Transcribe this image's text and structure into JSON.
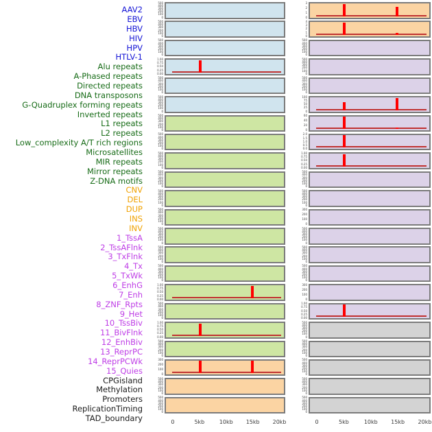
{
  "chart_data": {
    "type": "line",
    "title": "",
    "xlabel": "",
    "ylabel": "",
    "x_ticks": [
      "0",
      "5kb",
      "10kb",
      "15kb",
      "20kb"
    ],
    "x_tick_kb": [
      0,
      5,
      10,
      15,
      20
    ],
    "x_range_kb": [
      0,
      20
    ],
    "columns": 2,
    "rows_per_column": 22,
    "legend_position": "none",
    "grid": false,
    "colors": {
      "spike": "#ff0000",
      "baseline": "#c03030",
      "panel_border": "#7b7b7b",
      "tick_text": "#3f3f3f",
      "axis_text": "#3a3a3a"
    },
    "groups": {
      "virus": {
        "label_color": "#1414d6",
        "panel_color": "#d0e4ee"
      },
      "repeat": {
        "label_color": "#166b16",
        "panel_color": "#cee6a3"
      },
      "sv": {
        "label_color": "#f0a202",
        "panel_color": "#fbd4a3"
      },
      "chromatin": {
        "label_color": "#be3ce6",
        "panel_color": "#dcd2e8"
      },
      "feature": {
        "label_color": "#1a1a1a",
        "panel_color": "#d3d3d3"
      }
    },
    "tracks": [
      {
        "label": "AAV2",
        "group": "virus",
        "ylim": [
          0,
          500
        ],
        "yticks": [
          "500",
          "400",
          "300",
          "200",
          "100",
          "0"
        ],
        "spikes": []
      },
      {
        "label": "EBV",
        "group": "virus",
        "ylim": [
          0,
          500
        ],
        "yticks": [
          "500",
          "400",
          "300",
          "200",
          "100",
          "0"
        ],
        "spikes": []
      },
      {
        "label": "HBV",
        "group": "virus",
        "ylim": [
          0,
          500
        ],
        "yticks": [
          "500",
          "400",
          "300",
          "200",
          "100",
          "0"
        ],
        "spikes": []
      },
      {
        "label": "HIV",
        "group": "virus",
        "ylim": [
          0,
          1
        ],
        "yticks": [
          "1.00",
          "0.75",
          "0.50",
          "0.25",
          "0.00"
        ],
        "spikes": [
          {
            "x_kb": 5,
            "y": 1.0
          }
        ]
      },
      {
        "label": "HPV",
        "group": "virus",
        "ylim": [
          0,
          500
        ],
        "yticks": [
          "500",
          "400",
          "300",
          "200",
          "100",
          "0"
        ],
        "spikes": []
      },
      {
        "label": "HTLV-1",
        "group": "virus",
        "ylim": [
          0,
          500
        ],
        "yticks": [
          "500",
          "400",
          "300",
          "200",
          "100",
          "0"
        ],
        "spikes": []
      },
      {
        "label": "Alu repeats",
        "group": "repeat",
        "ylim": [
          0,
          500
        ],
        "yticks": [
          "500",
          "400",
          "300",
          "200",
          "100",
          "0"
        ],
        "spikes": []
      },
      {
        "label": "A-Phased repeats",
        "group": "repeat",
        "ylim": [
          0,
          500
        ],
        "yticks": [
          "500",
          "400",
          "300",
          "200",
          "100",
          "0"
        ],
        "spikes": []
      },
      {
        "label": "Directed repeats",
        "group": "repeat",
        "ylim": [
          0,
          500
        ],
        "yticks": [
          "500",
          "400",
          "300",
          "200",
          "100",
          "0"
        ],
        "spikes": []
      },
      {
        "label": "DNA transposons",
        "group": "repeat",
        "ylim": [
          0,
          500
        ],
        "yticks": [
          "500",
          "400",
          "300",
          "200",
          "100",
          "0"
        ],
        "spikes": []
      },
      {
        "label": "G-Quadruplex forming repeats",
        "group": "repeat",
        "ylim": [
          0,
          500
        ],
        "yticks": [
          "500",
          "400",
          "300",
          "200",
          "100",
          "0"
        ],
        "spikes": []
      },
      {
        "label": "Inverted repeats",
        "group": "repeat",
        "ylim": [
          0,
          500
        ],
        "yticks": [
          "500",
          "400",
          "300",
          "200",
          "100",
          "0"
        ],
        "spikes": []
      },
      {
        "label": "L1 repeats",
        "group": "repeat",
        "ylim": [
          0,
          500
        ],
        "yticks": [
          "500",
          "400",
          "300",
          "200",
          "100",
          "0"
        ],
        "spikes": []
      },
      {
        "label": "L2 repeats",
        "group": "repeat",
        "ylim": [
          0,
          500
        ],
        "yticks": [
          "500",
          "400",
          "300",
          "200",
          "100",
          "0"
        ],
        "spikes": []
      },
      {
        "label": "Low_complexity A/T rich regions",
        "group": "repeat",
        "ylim": [
          0,
          500
        ],
        "yticks": [
          "500",
          "400",
          "300",
          "200",
          "100",
          "0"
        ],
        "spikes": []
      },
      {
        "label": "Microsatellites",
        "group": "repeat",
        "ylim": [
          0,
          1
        ],
        "yticks": [
          "1.00",
          "0.75",
          "0.50",
          "0.25",
          "0.00"
        ],
        "spikes": [
          {
            "x_kb": 15,
            "y": 1.0
          }
        ]
      },
      {
        "label": "MIR repeats",
        "group": "repeat",
        "ylim": [
          0,
          500
        ],
        "yticks": [
          "500",
          "400",
          "300",
          "200",
          "100",
          "0"
        ],
        "spikes": []
      },
      {
        "label": "Mirror repeats",
        "group": "repeat",
        "ylim": [
          0,
          1
        ],
        "yticks": [
          "1.00",
          "0.75",
          "0.50",
          "0.25",
          "0.00"
        ],
        "spikes": [
          {
            "x_kb": 5,
            "y": 1.0
          }
        ]
      },
      {
        "label": "Z-DNA motifs",
        "group": "repeat",
        "ylim": [
          0,
          500
        ],
        "yticks": [
          "500",
          "400",
          "300",
          "200",
          "100",
          "0"
        ],
        "spikes": []
      },
      {
        "label": "CNV",
        "group": "sv",
        "ylim": [
          0,
          300
        ],
        "yticks": [
          "300",
          "200",
          "100",
          "0"
        ],
        "spikes": [
          {
            "x_kb": 5,
            "y": 300
          },
          {
            "x_kb": 15,
            "y": 300
          }
        ]
      },
      {
        "label": "DEL",
        "group": "sv",
        "ylim": [
          0,
          500
        ],
        "yticks": [
          "500",
          "400",
          "300",
          "200",
          "100",
          "0"
        ],
        "spikes": []
      },
      {
        "label": "DUP",
        "group": "sv",
        "ylim": [
          0,
          500
        ],
        "yticks": [
          "500",
          "400",
          "300",
          "200",
          "100",
          "0"
        ],
        "spikes": []
      },
      {
        "label": "INS",
        "group": "sv",
        "ylim": [
          0,
          3
        ],
        "yticks": [
          "3",
          "2",
          "1",
          "0"
        ],
        "spikes": [
          {
            "x_kb": 5,
            "y": 3.0
          },
          {
            "x_kb": 15,
            "y": 2.2
          }
        ]
      },
      {
        "label": "INV",
        "group": "sv",
        "ylim": [
          0,
          4
        ],
        "yticks": [
          "4",
          "3",
          "2",
          "1",
          "0"
        ],
        "spikes": [
          {
            "x_kb": 5,
            "y": 4.0
          },
          {
            "x_kb": 15,
            "y": 0.7
          }
        ]
      },
      {
        "label": "1_TssA",
        "group": "chromatin",
        "ylim": [
          0,
          500
        ],
        "yticks": [
          "500",
          "400",
          "300",
          "200",
          "100",
          "0"
        ],
        "spikes": []
      },
      {
        "label": "2_TssAFlnk",
        "group": "chromatin",
        "ylim": [
          0,
          500
        ],
        "yticks": [
          "500",
          "400",
          "300",
          "200",
          "100",
          "0"
        ],
        "spikes": []
      },
      {
        "label": "3_TxFlnk",
        "group": "chromatin",
        "ylim": [
          0,
          500
        ],
        "yticks": [
          "500",
          "400",
          "300",
          "200",
          "100",
          "0"
        ],
        "spikes": []
      },
      {
        "label": "4_Tx",
        "group": "chromatin",
        "ylim": [
          0,
          100
        ],
        "yticks": [
          "100",
          "75",
          "50",
          "25",
          "0"
        ],
        "spikes": [
          {
            "x_kb": 5,
            "y": 65
          },
          {
            "x_kb": 15,
            "y": 100
          }
        ]
      },
      {
        "label": "5_TxWk",
        "group": "chromatin",
        "ylim": [
          0,
          60
        ],
        "yticks": [
          "60",
          "40",
          "20",
          "0"
        ],
        "spikes": [
          {
            "x_kb": 5,
            "y": 60
          },
          {
            "x_kb": 15,
            "y": 8
          }
        ]
      },
      {
        "label": "6_EnhG",
        "group": "chromatin",
        "ylim": [
          0,
          2
        ],
        "yticks": [
          "2.0",
          "1.5",
          "1.0",
          "0.5",
          "0.0"
        ],
        "spikes": [
          {
            "x_kb": 5,
            "y": 2.0
          }
        ]
      },
      {
        "label": "7_Enh",
        "group": "chromatin",
        "ylim": [
          0,
          1
        ],
        "yticks": [
          "1.00",
          "0.75",
          "0.50",
          "0.25",
          "0.00"
        ],
        "spikes": [
          {
            "x_kb": 5,
            "y": 1.0
          }
        ]
      },
      {
        "label": "8_ZNF_Rpts",
        "group": "chromatin",
        "ylim": [
          0,
          500
        ],
        "yticks": [
          "500",
          "400",
          "300",
          "200",
          "100",
          "0"
        ],
        "spikes": []
      },
      {
        "label": "9_Het",
        "group": "chromatin",
        "ylim": [
          0,
          500
        ],
        "yticks": [
          "500",
          "400",
          "300",
          "200",
          "100",
          "0"
        ],
        "spikes": []
      },
      {
        "label": "10_TssBiv",
        "group": "chromatin",
        "ylim": [
          0,
          300
        ],
        "yticks": [
          "300",
          "200",
          "100",
          "0"
        ],
        "spikes": []
      },
      {
        "label": "11_BivFlnk",
        "group": "chromatin",
        "ylim": [
          0,
          500
        ],
        "yticks": [
          "500",
          "400",
          "300",
          "200",
          "100",
          "0"
        ],
        "spikes": []
      },
      {
        "label": "12_EnhBiv",
        "group": "chromatin",
        "ylim": [
          0,
          500
        ],
        "yticks": [
          "500",
          "400",
          "300",
          "200",
          "100",
          "0"
        ],
        "spikes": []
      },
      {
        "label": "13_ReprPC",
        "group": "chromatin",
        "ylim": [
          0,
          500
        ],
        "yticks": [
          "500",
          "400",
          "300",
          "200",
          "100",
          "0"
        ],
        "spikes": []
      },
      {
        "label": "14_ReprPCWk",
        "group": "chromatin",
        "ylim": [
          0,
          300
        ],
        "yticks": [
          "300",
          "200",
          "100",
          "0"
        ],
        "spikes": []
      },
      {
        "label": "15_Quies",
        "group": "chromatin",
        "ylim": [
          0,
          1
        ],
        "yticks": [
          "1.00",
          "0.75",
          "0.50",
          "0.25",
          "0.00"
        ],
        "spikes": [
          {
            "x_kb": 5,
            "y": 1.0
          }
        ]
      },
      {
        "label": "CPGisland",
        "group": "feature",
        "ylim": [
          0,
          500
        ],
        "yticks": [
          "500",
          "400",
          "300",
          "200",
          "100",
          "0"
        ],
        "spikes": []
      },
      {
        "label": "Methylation",
        "group": "feature",
        "ylim": [
          0,
          500
        ],
        "yticks": [
          "500",
          "400",
          "300",
          "200",
          "100",
          "0"
        ],
        "spikes": []
      },
      {
        "label": "Promoters",
        "group": "feature",
        "ylim": [
          0,
          500
        ],
        "yticks": [
          "500",
          "400",
          "300",
          "200",
          "100",
          "0"
        ],
        "spikes": []
      },
      {
        "label": "ReplicationTiming",
        "group": "feature",
        "ylim": [
          0,
          500
        ],
        "yticks": [
          "500",
          "400",
          "300",
          "200",
          "100",
          "0"
        ],
        "spikes": []
      },
      {
        "label": "TAD_boundary",
        "group": "feature",
        "ylim": [
          0,
          500
        ],
        "yticks": [
          "500",
          "400",
          "300",
          "200",
          "100",
          "0"
        ],
        "spikes": []
      }
    ]
  }
}
